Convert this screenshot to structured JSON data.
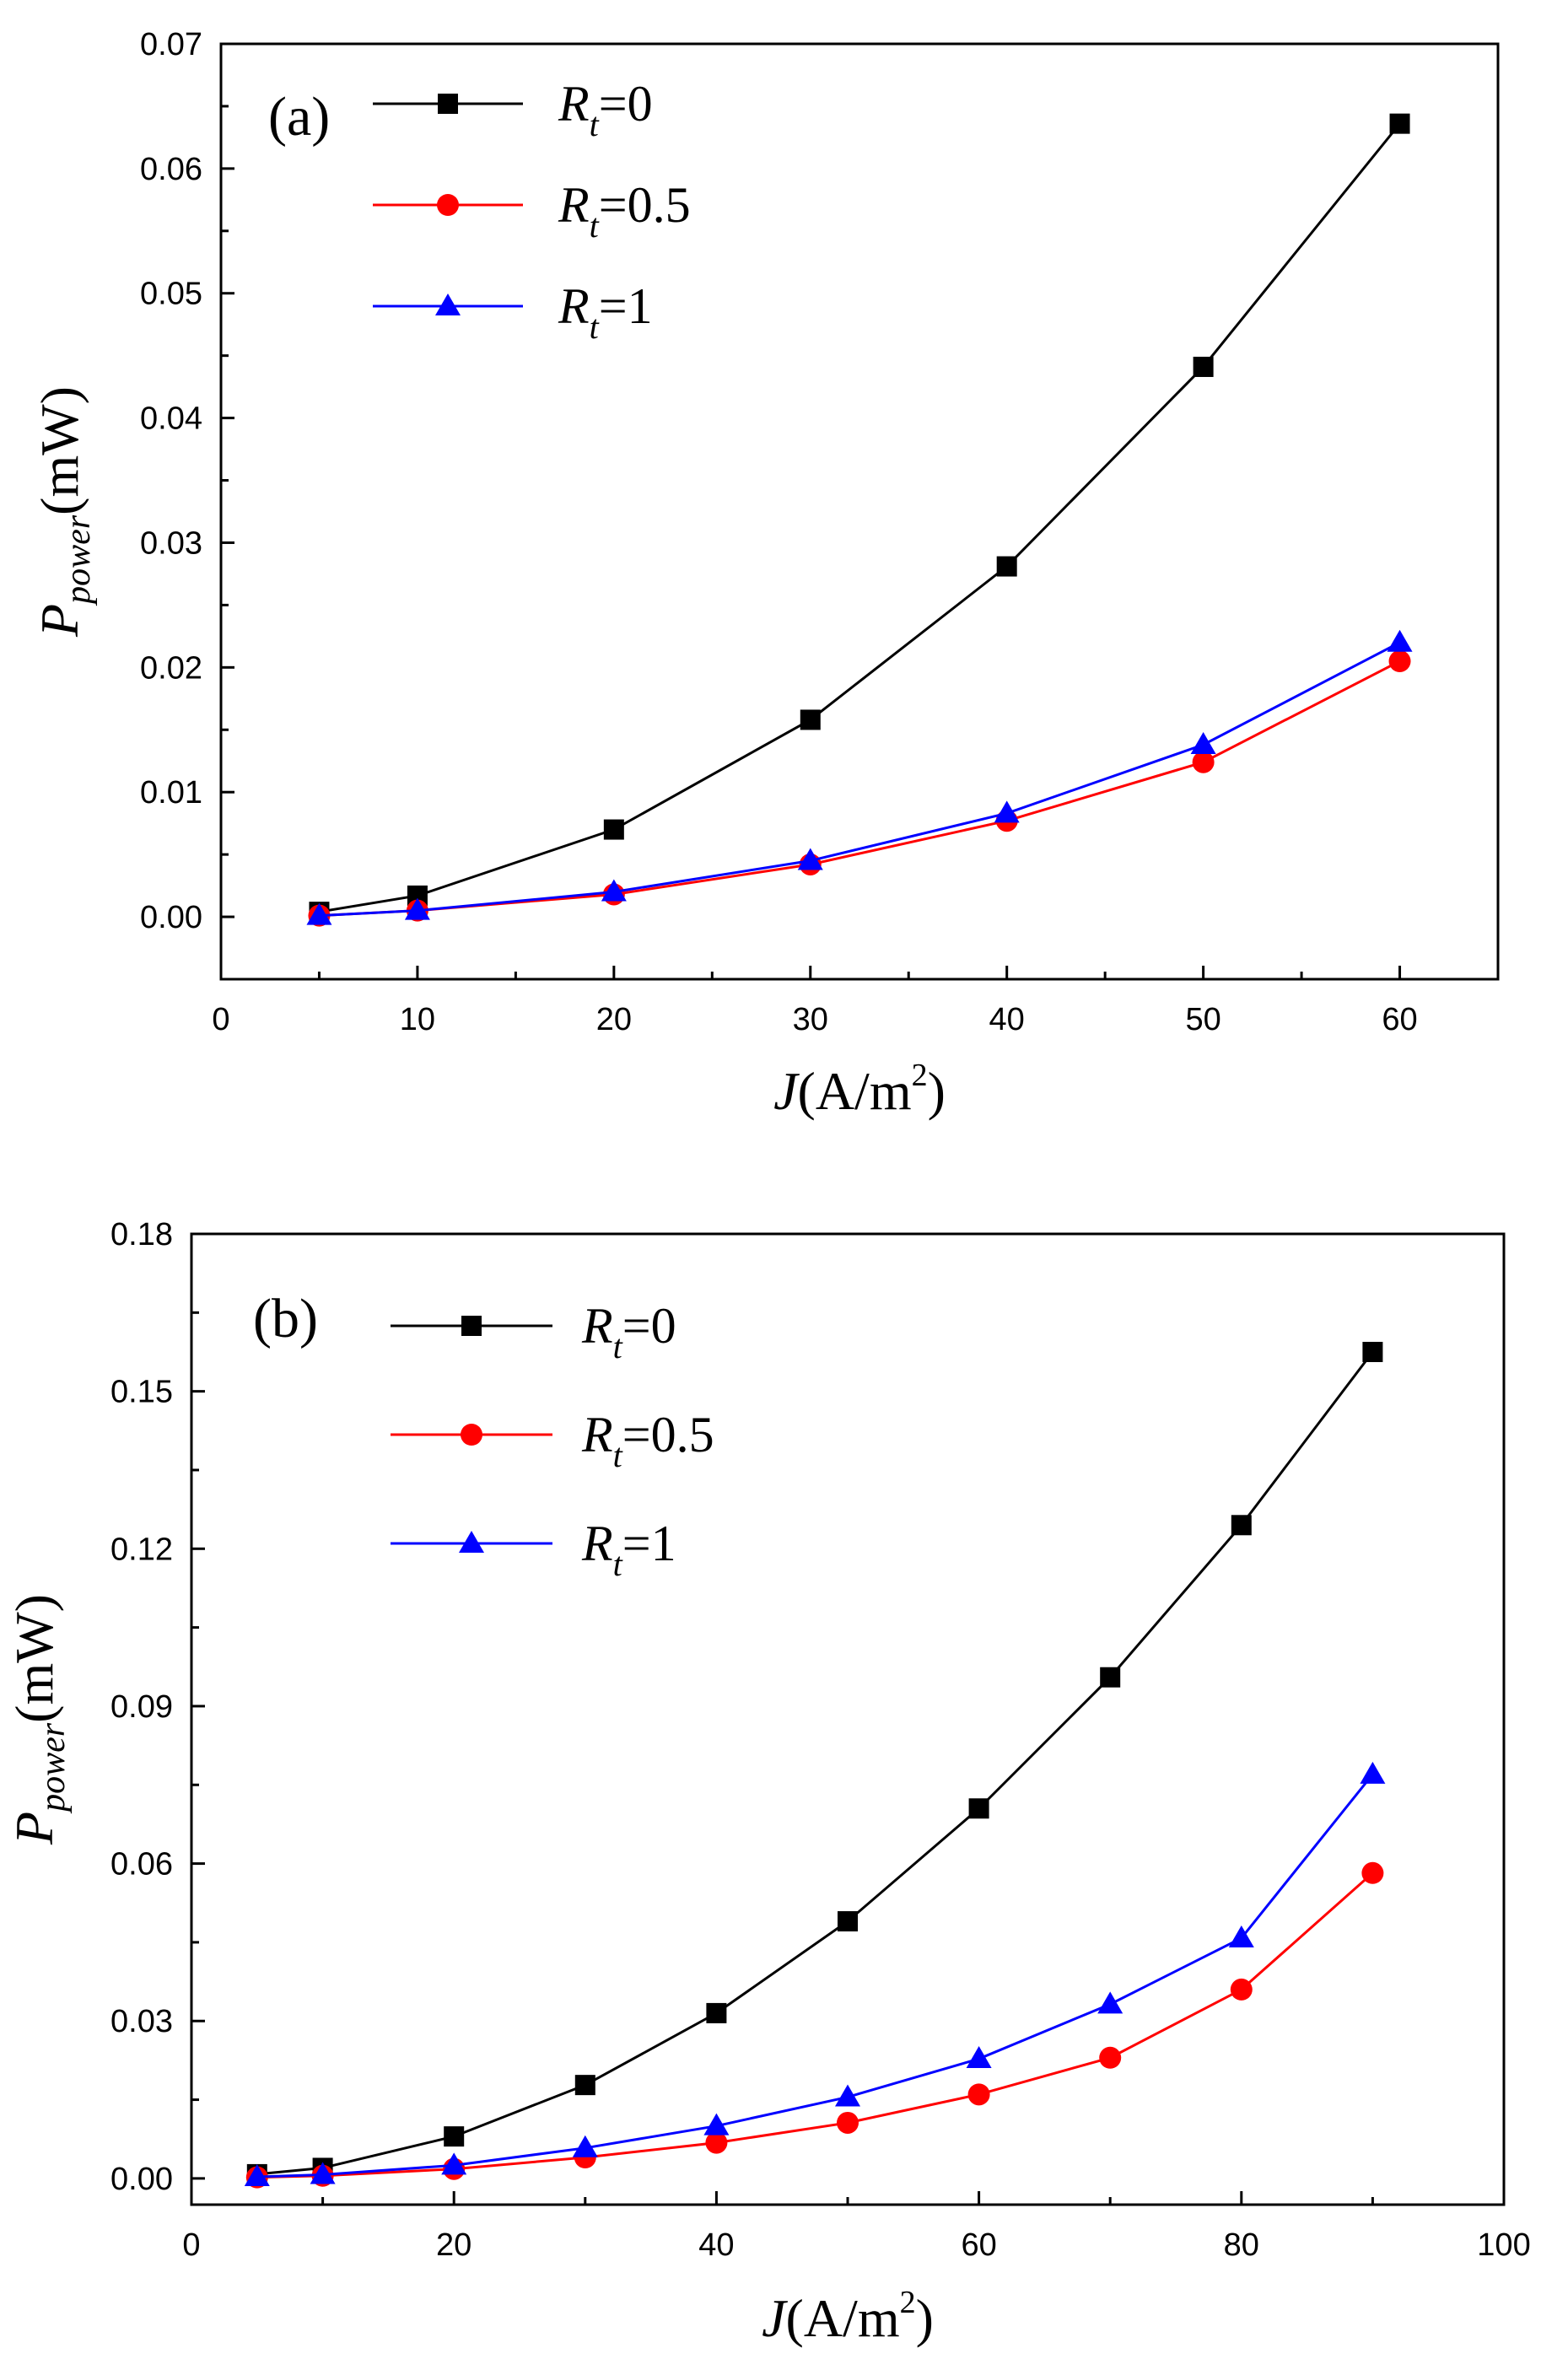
{
  "chart_data": [
    {
      "type": "line",
      "panel_label": "(a)",
      "xlabel": {
        "italic": "J",
        "rest": "(A/m",
        "sup": "2",
        "close": ")"
      },
      "ylabel": {
        "main": "P",
        "sub": "power",
        "rest": "(mW)"
      },
      "xlim": [
        0,
        65
      ],
      "ylim": [
        -0.005,
        0.07
      ],
      "xticks": [
        0,
        10,
        20,
        30,
        40,
        50,
        60
      ],
      "xtick_labels": [
        "0",
        "10",
        "20",
        "30",
        "40",
        "50",
        "60"
      ],
      "xminor": [
        5,
        15,
        25,
        35,
        45,
        55
      ],
      "yticks": [
        0,
        0.01,
        0.02,
        0.03,
        0.04,
        0.05,
        0.06,
        0.07
      ],
      "ytick_labels": [
        "0.00",
        "0.01",
        "0.02",
        "0.03",
        "0.04",
        "0.05",
        "0.06",
        "0.07"
      ],
      "yminor": [
        0.005,
        0.015,
        0.025,
        0.035,
        0.045,
        0.055,
        0.065
      ],
      "legend_position": "top-left",
      "x": [
        5,
        10,
        20,
        30,
        40,
        50,
        60
      ],
      "series": [
        {
          "name": "Rt=0",
          "legend_main": "R",
          "legend_sub": "t",
          "legend_value": "=0",
          "color": "#000000",
          "marker": "square",
          "values": [
            0.0004,
            0.0017,
            0.007,
            0.0158,
            0.0281,
            0.0441,
            0.0636
          ]
        },
        {
          "name": "Rt=0.5",
          "legend_main": "R",
          "legend_sub": "t",
          "legend_value": "=0.5",
          "color": "#ff0000",
          "marker": "circle",
          "values": [
            0.0001,
            0.0005,
            0.0018,
            0.0042,
            0.0077,
            0.0124,
            0.0205
          ]
        },
        {
          "name": "Rt=1",
          "legend_main": "R",
          "legend_sub": "t",
          "legend_value": "=1",
          "color": "#0000ff",
          "marker": "triangle",
          "values": [
            0.0001,
            0.0005,
            0.002,
            0.0045,
            0.0083,
            0.0138,
            0.022
          ]
        }
      ]
    },
    {
      "type": "line",
      "panel_label": "(b)",
      "xlabel": {
        "italic": "J",
        "rest": "(A/m",
        "sup": "2",
        "close": ")"
      },
      "ylabel": {
        "main": "P",
        "sub": "power",
        "rest": "(mW)"
      },
      "xlim": [
        0,
        100
      ],
      "ylim": [
        -0.005,
        0.18
      ],
      "xticks": [
        0,
        20,
        40,
        60,
        80,
        100
      ],
      "xtick_labels": [
        "0",
        "20",
        "40",
        "60",
        "80",
        "100"
      ],
      "xminor": [
        10,
        30,
        50,
        70,
        90
      ],
      "yticks": [
        0,
        0.03,
        0.06,
        0.09,
        0.12,
        0.15,
        0.18
      ],
      "ytick_labels": [
        "0.00",
        "0.03",
        "0.06",
        "0.09",
        "0.12",
        "0.15",
        "0.18"
      ],
      "yminor": [
        0.015,
        0.045,
        0.075,
        0.105,
        0.135,
        0.165
      ],
      "legend_position": "top-left",
      "x": [
        5,
        10,
        20,
        30,
        40,
        50,
        60,
        70,
        80,
        90
      ],
      "series": [
        {
          "name": "Rt=0",
          "legend_main": "R",
          "legend_sub": "t",
          "legend_value": "=0",
          "color": "#000000",
          "marker": "square",
          "values": [
            0.0008,
            0.002,
            0.008,
            0.0178,
            0.0315,
            0.049,
            0.0705,
            0.0955,
            0.1245,
            0.1575
          ]
        },
        {
          "name": "Rt=0.5",
          "legend_main": "R",
          "legend_sub": "t",
          "legend_value": "=0.5",
          "color": "#ff0000",
          "marker": "circle",
          "values": [
            0.0002,
            0.0005,
            0.0018,
            0.004,
            0.0068,
            0.0106,
            0.016,
            0.023,
            0.036,
            0.0582
          ]
        },
        {
          "name": "Rt=1",
          "legend_main": "R",
          "legend_sub": "t",
          "legend_value": "=1",
          "color": "#0000ff",
          "marker": "triangle",
          "values": [
            0.0003,
            0.0007,
            0.0025,
            0.0058,
            0.01,
            0.0155,
            0.0228,
            0.0332,
            0.0458,
            0.077
          ]
        }
      ]
    }
  ]
}
